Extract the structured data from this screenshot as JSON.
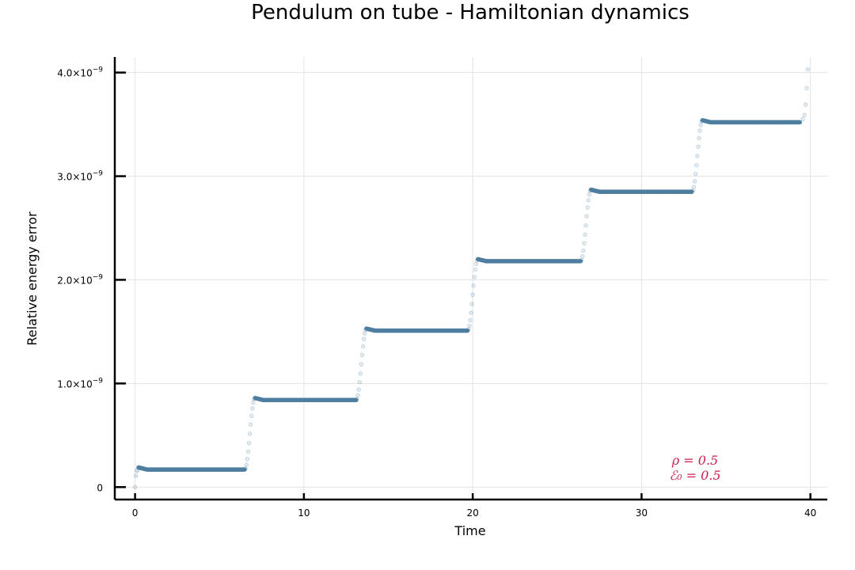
{
  "chart_data": {
    "type": "scatter",
    "title": "Pendulum on tube - Hamiltonian dynamics",
    "xlabel": "Time",
    "ylabel": "Relative energy error",
    "xlim": [
      -1.2,
      41
    ],
    "ylim": [
      -1.2e-10,
      4.15e-09
    ],
    "xticks": [
      0,
      10,
      20,
      30,
      40
    ],
    "xtick_labels": [
      "0",
      "10",
      "20",
      "30",
      "40"
    ],
    "yticks": [
      0,
      1e-09,
      2e-09,
      3e-09,
      4e-09
    ],
    "ytick_labels": [
      "0",
      "1.0×10",
      "2.0×10",
      "3.0×10",
      "4.0×10"
    ],
    "ytick_exponent": "−9",
    "grid": true,
    "marker_color": "#4f7fa0",
    "annotation_color": "#d0204e",
    "steps": {
      "period": 6.6667,
      "levels": [
        1.7e-10,
        8.4e-10,
        1.51e-09,
        2.18e-09,
        2.85e-09,
        3.52e-09
      ],
      "peaks": [
        1.9e-10,
        8.6e-10,
        1.53e-09,
        2.2e-09,
        2.87e-09,
        3.54e-09
      ],
      "jump_times": [
        6.8,
        13.4,
        20.0,
        26.7,
        33.3
      ],
      "end_value": 4.03e-09
    },
    "annotations": [
      "ρ = 0.5",
      "ℰ₀ = 0.5"
    ]
  }
}
